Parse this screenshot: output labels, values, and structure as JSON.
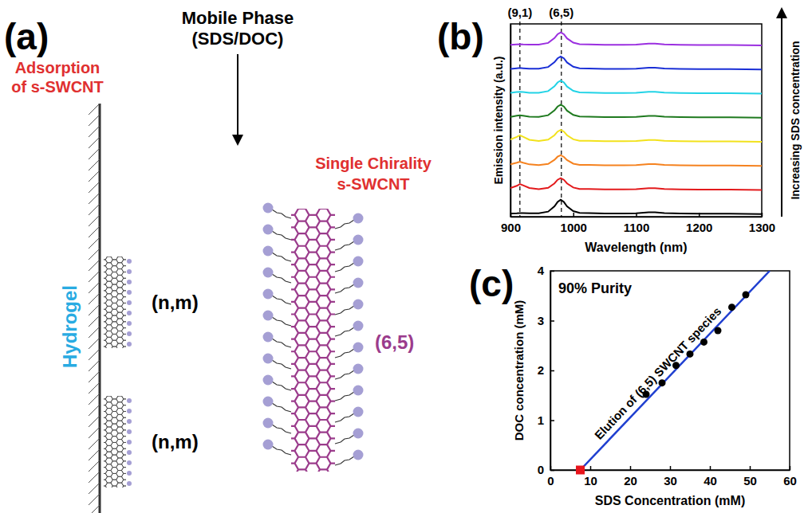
{
  "diagram": {
    "panel_label": "(a)",
    "mobile_phase": [
      "Mobile Phase",
      "(SDS/DOC)"
    ],
    "adsorption_label": [
      "Adsorption",
      "of s-SWCNT"
    ],
    "hydrogel_label": "Hydrogel",
    "single_chirality_label": [
      "Single Chirality",
      "s-SWCNT"
    ],
    "adsorbed_tubes": [
      "(n,m)",
      "(n,m)"
    ],
    "free_tube": "(6,5)"
  },
  "chart_data": [
    {
      "type": "line",
      "panel_label": "(b)",
      "x_label": "Wavelength (nm)",
      "y_label": "Emission intensity (a.u.)",
      "x": [
        900,
        910,
        915,
        920,
        930,
        945,
        960,
        970,
        975,
        980,
        985,
        990,
        1000,
        1010,
        1025,
        1050,
        1080,
        1100,
        1120,
        1130,
        1145,
        1170,
        1200,
        1250,
        1300
      ],
      "series": [
        {
          "color": "#000000",
          "values": [
            0.13,
            0.14,
            0.15,
            0.15,
            0.14,
            0.14,
            0.21,
            0.43,
            0.61,
            0.7,
            0.61,
            0.43,
            0.23,
            0.16,
            0.15,
            0.13,
            0.13,
            0.14,
            0.18,
            0.18,
            0.15,
            0.13,
            0.12,
            0.12,
            0.11
          ]
        },
        {
          "color": "#e31a1c",
          "values": [
            1.19,
            1.28,
            1.35,
            1.3,
            1.19,
            1.14,
            1.2,
            1.38,
            1.53,
            1.6,
            1.53,
            1.38,
            1.21,
            1.15,
            1.15,
            1.13,
            1.13,
            1.14,
            1.18,
            1.18,
            1.15,
            1.13,
            1.12,
            1.12,
            1.11
          ]
        },
        {
          "color": "#f5821f",
          "values": [
            2.17,
            2.24,
            2.28,
            2.24,
            2.17,
            2.14,
            2.19,
            2.36,
            2.49,
            2.55,
            2.48,
            2.35,
            2.2,
            2.15,
            2.15,
            2.13,
            2.13,
            2.14,
            2.18,
            2.18,
            2.15,
            2.13,
            2.12,
            2.12,
            2.11
          ]
        },
        {
          "color": "#f2e21c",
          "values": [
            3.2,
            3.31,
            3.38,
            3.32,
            3.19,
            3.14,
            3.2,
            3.38,
            3.53,
            3.6,
            3.53,
            3.38,
            3.21,
            3.15,
            3.15,
            3.13,
            3.13,
            3.14,
            3.18,
            3.18,
            3.15,
            3.13,
            3.12,
            3.12,
            3.11
          ]
        },
        {
          "color": "#1f7a1f",
          "values": [
            4.14,
            4.19,
            4.21,
            4.19,
            4.15,
            4.14,
            4.21,
            4.41,
            4.57,
            4.65,
            4.57,
            4.4,
            4.22,
            4.16,
            4.15,
            4.13,
            4.13,
            4.14,
            4.18,
            4.18,
            4.15,
            4.13,
            4.12,
            4.12,
            4.11
          ]
        },
        {
          "color": "#22d3e6",
          "values": [
            5.14,
            5.17,
            5.18,
            5.17,
            5.14,
            5.14,
            5.21,
            5.41,
            5.57,
            5.65,
            5.57,
            5.4,
            5.22,
            5.16,
            5.15,
            5.13,
            5.13,
            5.14,
            5.18,
            5.18,
            5.15,
            5.13,
            5.12,
            5.12,
            5.11
          ]
        },
        {
          "color": "#1a2fd6",
          "values": [
            6.13,
            6.16,
            6.17,
            6.16,
            6.14,
            6.14,
            6.21,
            6.41,
            6.57,
            6.65,
            6.57,
            6.4,
            6.22,
            6.16,
            6.15,
            6.13,
            6.13,
            6.14,
            6.18,
            6.18,
            6.15,
            6.13,
            6.12,
            6.12,
            6.11
          ]
        },
        {
          "color": "#9b2fe0",
          "values": [
            7.13,
            7.15,
            7.16,
            7.15,
            7.14,
            7.14,
            7.21,
            7.41,
            7.57,
            7.65,
            7.57,
            7.4,
            7.22,
            7.16,
            7.15,
            7.13,
            7.13,
            7.14,
            7.18,
            7.18,
            7.15,
            7.13,
            7.12,
            7.12,
            7.11
          ]
        }
      ],
      "xlim": [
        900,
        1300
      ],
      "xticks": [
        900,
        1000,
        1100,
        1200,
        1300
      ],
      "ylim": [
        0,
        8
      ],
      "tick_labels": "x",
      "annotations": [
        {
          "x": 915,
          "label": "(9,1)"
        },
        {
          "x": 981,
          "label": "(6,5)"
        }
      ],
      "arrow_label": "Increasing SDS concentration"
    },
    {
      "type": "scatter",
      "panel_label": "(c)",
      "x_label": "SDS Concentration (mM)",
      "y_label": "DOC concentration (mM)",
      "xlim": [
        0,
        60
      ],
      "xticks": [
        0,
        10,
        20,
        30,
        40,
        50,
        60
      ],
      "ylim": [
        0,
        4
      ],
      "yticks": [
        0,
        1,
        2,
        3,
        4
      ],
      "annotations": [
        {
          "label": "90% Purity"
        },
        {
          "label": "Elution of (6,5) SWCNT species"
        }
      ],
      "series": [
        {
          "type": "scatter",
          "marker": "circle",
          "color": "#000000",
          "x": [
            24,
            28,
            31.5,
            35,
            38.5,
            42,
            45.5,
            49
          ],
          "values": [
            1.52,
            1.75,
            2.1,
            2.33,
            2.57,
            2.8,
            3.27,
            3.52
          ]
        },
        {
          "type": "scatter",
          "marker": "square",
          "color": "#e8141c",
          "x": [
            7.5
          ],
          "values": [
            0
          ]
        },
        {
          "type": "line",
          "color": "#1f3fd0",
          "x": [
            7.5,
            55
          ],
          "values": [
            0,
            4
          ]
        }
      ]
    }
  ]
}
